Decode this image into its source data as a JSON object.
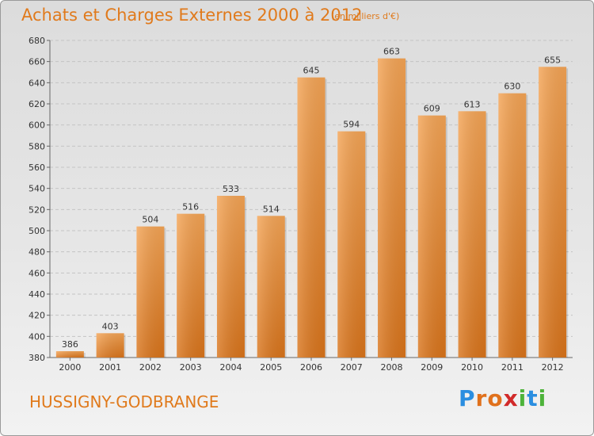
{
  "header": {
    "title": "Achats et Charges Externes 2000 à 2012",
    "unit": "(en milliers d'€)"
  },
  "location": "HUSSIGNY-GODBRANGE",
  "brand": {
    "text": "Proxiti",
    "letters": [
      {
        "ch": "P",
        "color": "#2a8ee0"
      },
      {
        "ch": "r",
        "color": "#e0711c"
      },
      {
        "ch": "o",
        "color": "#e0711c"
      },
      {
        "ch": "x",
        "color": "#d12a2a"
      },
      {
        "ch": "i",
        "color": "#4db33a"
      },
      {
        "ch": "t",
        "color": "#2a8ee0"
      },
      {
        "ch": "i",
        "color": "#4db33a"
      }
    ]
  },
  "colors": {
    "accent": "#e07a1c",
    "bar_light": "#f4a455",
    "bar_dark": "#d9741b"
  },
  "chart_data": {
    "type": "bar",
    "title": "Achats et Charges Externes 2000 à 2012",
    "subtitle": "(en milliers d'€)",
    "xlabel": "",
    "ylabel": "",
    "categories": [
      "2000",
      "2001",
      "2002",
      "2003",
      "2004",
      "2005",
      "2006",
      "2007",
      "2008",
      "2009",
      "2010",
      "2011",
      "2012"
    ],
    "values": [
      386,
      403,
      504,
      516,
      533,
      514,
      645,
      594,
      663,
      609,
      613,
      630,
      655
    ],
    "ylim": [
      380,
      680
    ],
    "yticks": [
      380,
      400,
      420,
      440,
      460,
      480,
      500,
      520,
      540,
      560,
      580,
      600,
      620,
      640,
      660,
      680
    ],
    "grid": true,
    "data_labels": true
  }
}
